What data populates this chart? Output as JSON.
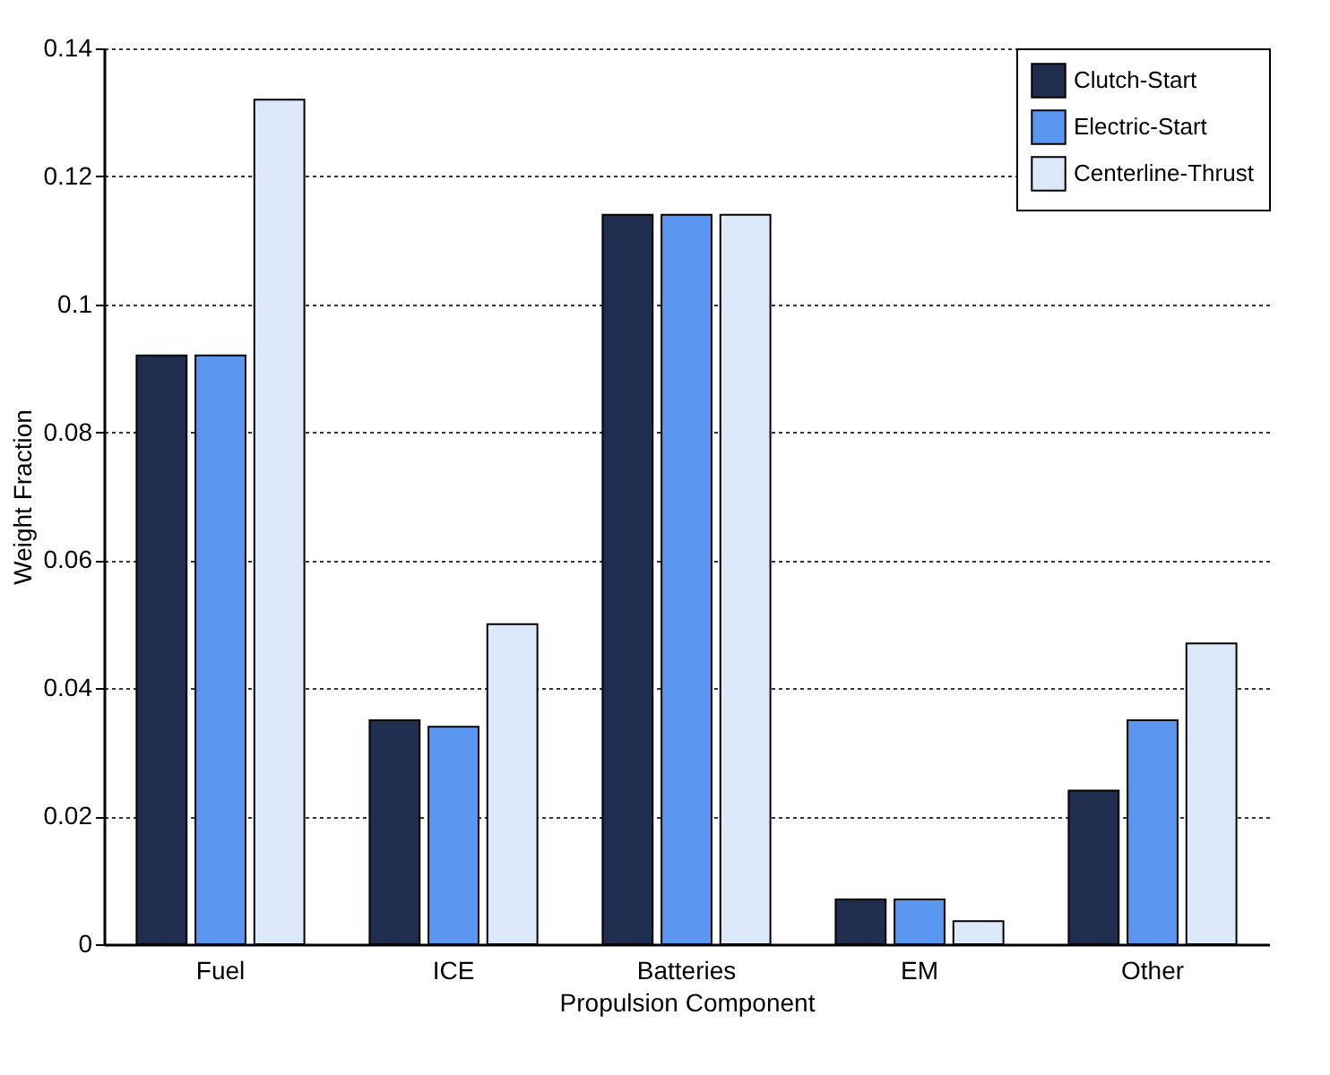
{
  "chart_data": {
    "type": "bar",
    "xlabel": "Propulsion Component",
    "ylabel": "Weight Fraction",
    "categories": [
      "Fuel",
      "ICE",
      "Batteries",
      "EM",
      "Other"
    ],
    "series": [
      {
        "name": "Clutch-Start",
        "color": "#1f2d4f",
        "values": [
          0.092,
          0.035,
          0.114,
          0.007,
          0.024
        ]
      },
      {
        "name": "Electric-Start",
        "color": "#5b97f0",
        "values": [
          0.092,
          0.034,
          0.114,
          0.007,
          0.035
        ]
      },
      {
        "name": "Centerline-Thrust",
        "color": "#dce9fb",
        "values": [
          0.132,
          0.05,
          0.114,
          0.0036,
          0.047
        ]
      }
    ],
    "ylim": [
      0,
      0.14
    ],
    "yticks": [
      0,
      0.02,
      0.04,
      0.06,
      0.08,
      0.1,
      0.12,
      0.14
    ],
    "grid": "y",
    "legend": "top right"
  }
}
